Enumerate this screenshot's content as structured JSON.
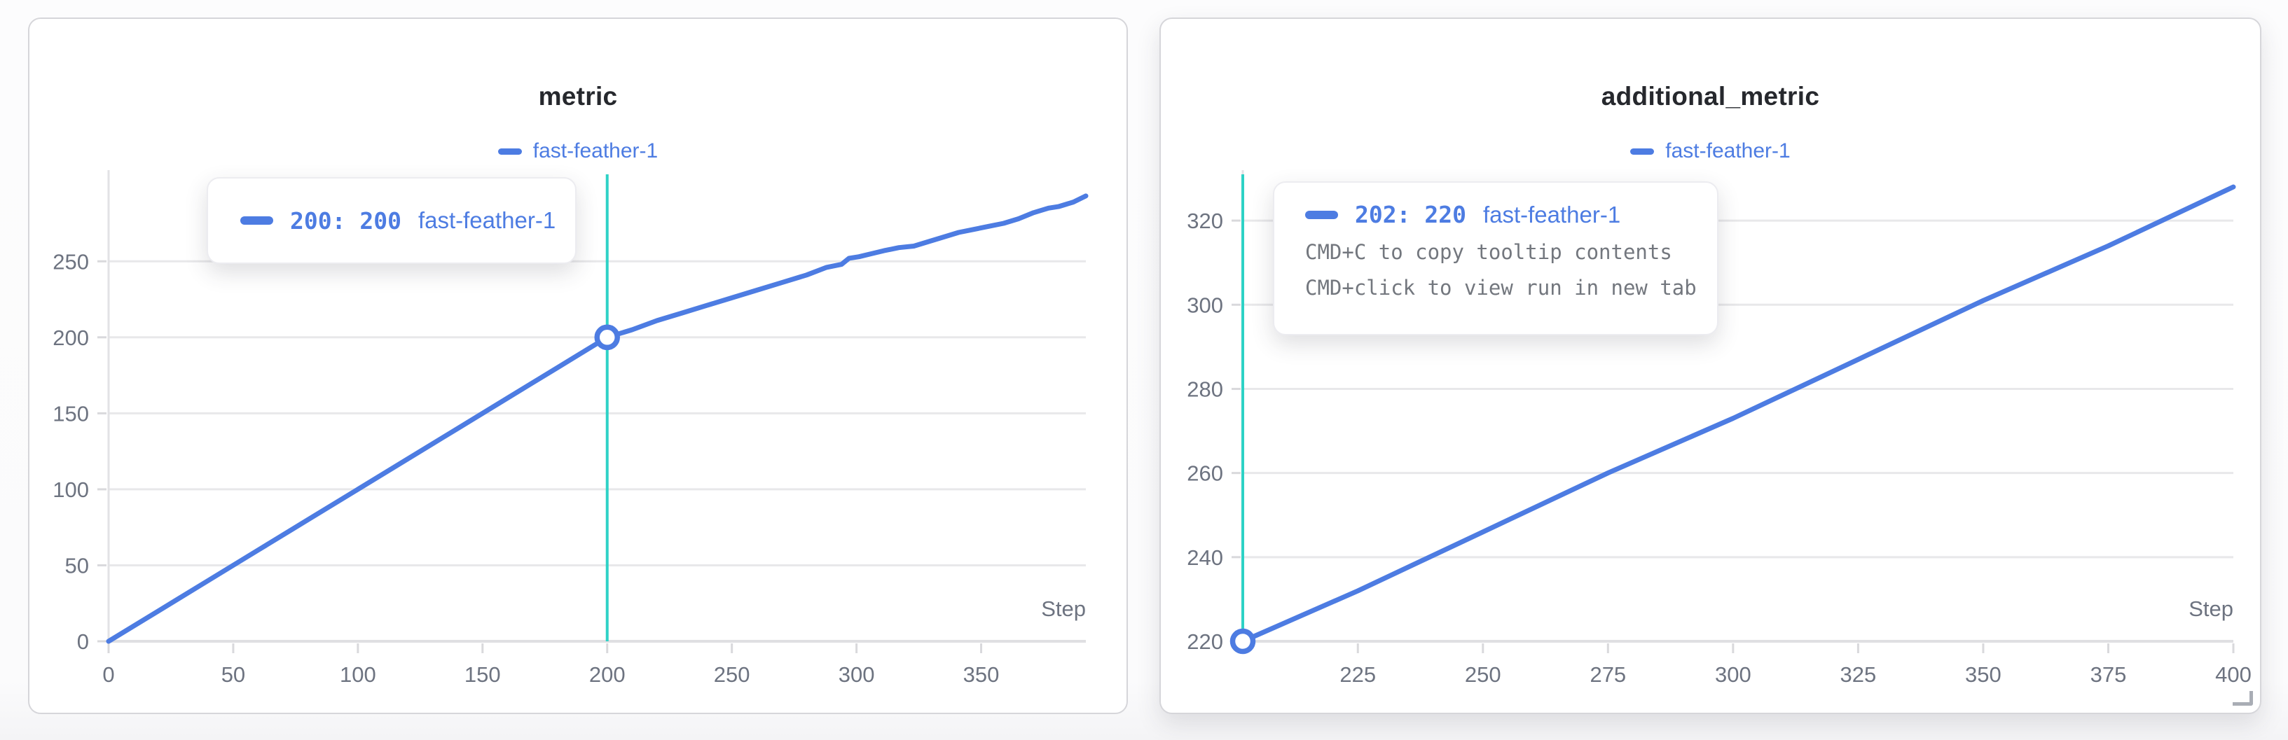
{
  "colors": {
    "series_blue": "#4d7ce2",
    "crosshair_teal": "#2ed2c6",
    "title_text": "#26282d",
    "tick_text": "#6d7380",
    "gridline": "#e8e8ea",
    "axis_line": "#dfdfe2",
    "hint_text": "#73777e"
  },
  "panels": [
    {
      "title": "metric",
      "legend_label": "fast-feather-1",
      "tooltip": {
        "value_text": "200: 200",
        "series": "fast-feather-1",
        "hints": []
      },
      "chart_data": {
        "type": "line",
        "title": "metric",
        "xlabel": "Step",
        "ylabel": "",
        "legend_position": "top-center",
        "grid": "horizontal",
        "xlim": [
          0,
          392
        ],
        "ylim": [
          0,
          310
        ],
        "x_ticks": [
          0,
          50,
          100,
          150,
          200,
          250,
          300,
          350
        ],
        "y_ticks": [
          0,
          50,
          100,
          150,
          200,
          250
        ],
        "x_minor_ticks": [],
        "crosshair_x": 200,
        "marker": {
          "x": 200,
          "y": 200
        },
        "series": [
          {
            "name": "fast-feather-1",
            "points": [
              [
                0,
                0
              ],
              [
                20,
                20
              ],
              [
                40,
                40
              ],
              [
                60,
                60
              ],
              [
                80,
                80
              ],
              [
                100,
                100
              ],
              [
                120,
                120
              ],
              [
                140,
                140
              ],
              [
                160,
                160
              ],
              [
                180,
                180
              ],
              [
                200,
                200
              ],
              [
                210,
                205
              ],
              [
                220,
                211
              ],
              [
                230,
                216
              ],
              [
                240,
                221
              ],
              [
                250,
                226
              ],
              [
                260,
                231
              ],
              [
                270,
                236
              ],
              [
                280,
                241
              ],
              [
                288,
                246
              ],
              [
                294,
                248
              ],
              [
                297,
                252
              ],
              [
                301,
                253
              ],
              [
                306,
                255
              ],
              [
                311,
                257
              ],
              [
                317,
                259
              ],
              [
                323,
                260
              ],
              [
                329,
                263
              ],
              [
                335,
                266
              ],
              [
                341,
                269
              ],
              [
                347,
                271
              ],
              [
                353,
                273
              ],
              [
                359,
                275
              ],
              [
                365,
                278
              ],
              [
                371,
                282
              ],
              [
                377,
                285
              ],
              [
                381,
                286
              ],
              [
                387,
                289
              ],
              [
                392,
                293
              ]
            ]
          }
        ]
      }
    },
    {
      "title": "additional_metric",
      "legend_label": "fast-feather-1",
      "tooltip": {
        "value_text": "202: 220",
        "series": "fast-feather-1",
        "hints": [
          "CMD+C to copy tooltip contents",
          "CMD+click to view run in new tab"
        ]
      },
      "chart_data": {
        "type": "line",
        "title": "additional_metric",
        "xlabel": "Step",
        "ylabel": "",
        "legend_position": "top-center",
        "grid": "horizontal",
        "xlim": [
          202,
          400
        ],
        "ylim": [
          220,
          332
        ],
        "x_ticks": [
          225,
          250,
          275,
          300,
          325,
          350,
          375,
          400
        ],
        "y_ticks": [
          220,
          240,
          260,
          280,
          300,
          320
        ],
        "x_minor_ticks": [
          202
        ],
        "crosshair_x": 202,
        "marker": {
          "x": 202,
          "y": 220
        },
        "series": [
          {
            "name": "fast-feather-1",
            "points": [
              [
                202,
                220
              ],
              [
                225,
                232
              ],
              [
                250,
                246
              ],
              [
                275,
                260
              ],
              [
                300,
                273
              ],
              [
                325,
                287
              ],
              [
                350,
                301
              ],
              [
                375,
                314
              ],
              [
                400,
                328
              ]
            ]
          }
        ]
      }
    }
  ]
}
